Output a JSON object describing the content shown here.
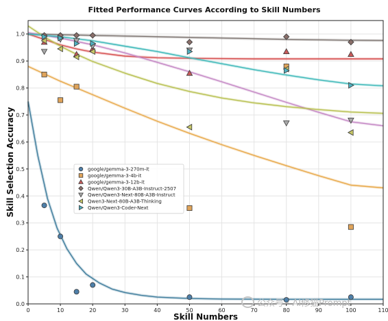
{
  "chart_data": {
    "type": "scatter",
    "title": "Fitted Performance Curves According to Skill Numbers",
    "xlabel": "Skill Numbers",
    "ylabel": "Skill Selection Accuracy",
    "xlim": [
      0,
      110
    ],
    "ylim": [
      0,
      1.05
    ],
    "xticks": [
      "0",
      "10",
      "20",
      "30",
      "40",
      "50",
      "60",
      "70",
      "80",
      "90",
      "100",
      "110"
    ],
    "yticks": [
      "0.0",
      "0.1",
      "0.2",
      "0.3",
      "0.4",
      "0.5",
      "0.6",
      "0.7",
      "0.8",
      "0.9",
      "1.0"
    ],
    "grid": true,
    "legend_position": "center-left",
    "series": [
      {
        "name": "google/gemma-3-270m-it",
        "marker": "circle",
        "color": "#4e7fa8",
        "line_color": "#3f7d9c",
        "points": [
          [
            5,
            0.365
          ],
          [
            10,
            0.25
          ],
          [
            15,
            0.045
          ],
          [
            20,
            0.07
          ],
          [
            50,
            0.025
          ],
          [
            80,
            0.015
          ],
          [
            100,
            0.025
          ]
        ],
        "curve": [
          [
            0,
            0.75
          ],
          [
            3,
            0.55
          ],
          [
            6,
            0.39
          ],
          [
            9,
            0.28
          ],
          [
            12,
            0.205
          ],
          [
            15,
            0.15
          ],
          [
            18,
            0.11
          ],
          [
            22,
            0.078
          ],
          [
            26,
            0.055
          ],
          [
            30,
            0.042
          ],
          [
            35,
            0.032
          ],
          [
            40,
            0.025
          ],
          [
            50,
            0.02
          ],
          [
            60,
            0.018
          ],
          [
            80,
            0.017
          ],
          [
            110,
            0.017
          ]
        ]
      },
      {
        "name": "google/gemma-3-4b-it",
        "marker": "square",
        "color": "#e0a45a",
        "line_color": "#e8a94a",
        "points": [
          [
            5,
            0.85
          ],
          [
            10,
            0.755
          ],
          [
            15,
            0.805
          ],
          [
            50,
            0.355
          ],
          [
            80,
            0.88
          ],
          [
            100,
            0.285
          ]
        ],
        "curve": [
          [
            0,
            0.88
          ],
          [
            10,
            0.825
          ],
          [
            20,
            0.775
          ],
          [
            30,
            0.725
          ],
          [
            40,
            0.677
          ],
          [
            50,
            0.632
          ],
          [
            60,
            0.59
          ],
          [
            70,
            0.55
          ],
          [
            80,
            0.512
          ],
          [
            90,
            0.475
          ],
          [
            100,
            0.44
          ],
          [
            110,
            0.43
          ]
        ]
      },
      {
        "name": "google/gemma-3-12b-it",
        "marker": "triangle-up",
        "color": "#c85a5a",
        "line_color": "#d65050",
        "points": [
          [
            5,
            0.97
          ],
          [
            10,
            0.99
          ],
          [
            15,
            0.925
          ],
          [
            20,
            0.945
          ],
          [
            50,
            0.855
          ],
          [
            80,
            0.935
          ],
          [
            100,
            0.925
          ]
        ],
        "curve": [
          [
            0,
            1.0
          ],
          [
            5,
            0.98
          ],
          [
            10,
            0.96
          ],
          [
            15,
            0.945
          ],
          [
            20,
            0.933
          ],
          [
            30,
            0.918
          ],
          [
            40,
            0.912
          ],
          [
            50,
            0.91
          ],
          [
            70,
            0.908
          ],
          [
            110,
            0.908
          ]
        ]
      },
      {
        "name": "Qwen/Qwen3-30B-A3B-Instruct-2507",
        "marker": "diamond",
        "color": "#8a6f6a",
        "line_color": "#7d7470",
        "points": [
          [
            5,
            0.995
          ],
          [
            10,
            0.995
          ],
          [
            15,
            0.995
          ],
          [
            20,
            0.995
          ],
          [
            50,
            0.97
          ],
          [
            80,
            0.99
          ],
          [
            100,
            0.97
          ]
        ],
        "curve": [
          [
            0,
            1.0
          ],
          [
            20,
            0.995
          ],
          [
            40,
            0.99
          ],
          [
            60,
            0.985
          ],
          [
            80,
            0.98
          ],
          [
            100,
            0.977
          ],
          [
            110,
            0.976
          ]
        ]
      },
      {
        "name": "Qwen/Qwen3-Next-80B-A3B-Instruct",
        "marker": "triangle-down",
        "color": "#a8a8a8",
        "line_color": "#c486c4",
        "points": [
          [
            5,
            0.935
          ],
          [
            10,
            0.98
          ],
          [
            15,
            0.975
          ],
          [
            20,
            0.955
          ],
          [
            50,
            0.94
          ],
          [
            80,
            0.67
          ],
          [
            100,
            0.68
          ]
        ],
        "curve": [
          [
            0,
            1.005
          ],
          [
            10,
            0.985
          ],
          [
            20,
            0.96
          ],
          [
            30,
            0.93
          ],
          [
            40,
            0.895
          ],
          [
            50,
            0.86
          ],
          [
            60,
            0.823
          ],
          [
            70,
            0.785
          ],
          [
            80,
            0.747
          ],
          [
            90,
            0.71
          ],
          [
            100,
            0.675
          ],
          [
            110,
            0.66
          ]
        ]
      },
      {
        "name": "Qwen3-Next-80B-A3B-Thinking",
        "marker": "triangle-left",
        "color": "#c6c666",
        "line_color": "#b8c050",
        "points": [
          [
            5,
            0.975
          ],
          [
            10,
            0.945
          ],
          [
            15,
            0.915
          ],
          [
            20,
            0.935
          ],
          [
            50,
            0.655
          ],
          [
            80,
            0.87
          ],
          [
            100,
            0.635
          ]
        ],
        "curve": [
          [
            0,
            1.03
          ],
          [
            5,
            0.99
          ],
          [
            10,
            0.955
          ],
          [
            15,
            0.925
          ],
          [
            20,
            0.898
          ],
          [
            30,
            0.855
          ],
          [
            40,
            0.817
          ],
          [
            50,
            0.787
          ],
          [
            60,
            0.763
          ],
          [
            70,
            0.745
          ],
          [
            80,
            0.731
          ],
          [
            90,
            0.72
          ],
          [
            100,
            0.711
          ],
          [
            110,
            0.706
          ]
        ]
      },
      {
        "name": "Qwen/Qwen3-Coder-Next",
        "marker": "triangle-right",
        "color": "#4fb0c0",
        "line_color": "#3cb8b8",
        "points": [
          [
            5,
            0.99
          ],
          [
            10,
            0.985
          ],
          [
            15,
            0.965
          ],
          [
            20,
            0.965
          ],
          [
            50,
            0.935
          ],
          [
            80,
            0.865
          ],
          [
            100,
            0.81
          ]
        ],
        "curve": [
          [
            0,
            1.0
          ],
          [
            10,
            0.99
          ],
          [
            20,
            0.975
          ],
          [
            30,
            0.955
          ],
          [
            40,
            0.935
          ],
          [
            50,
            0.912
          ],
          [
            60,
            0.89
          ],
          [
            70,
            0.868
          ],
          [
            80,
            0.848
          ],
          [
            90,
            0.83
          ],
          [
            100,
            0.815
          ],
          [
            110,
            0.808
          ]
        ]
      }
    ]
  },
  "watermark": {
    "text": "公众号 · AI修猫Prompt",
    "icon": "wechat-icon"
  }
}
